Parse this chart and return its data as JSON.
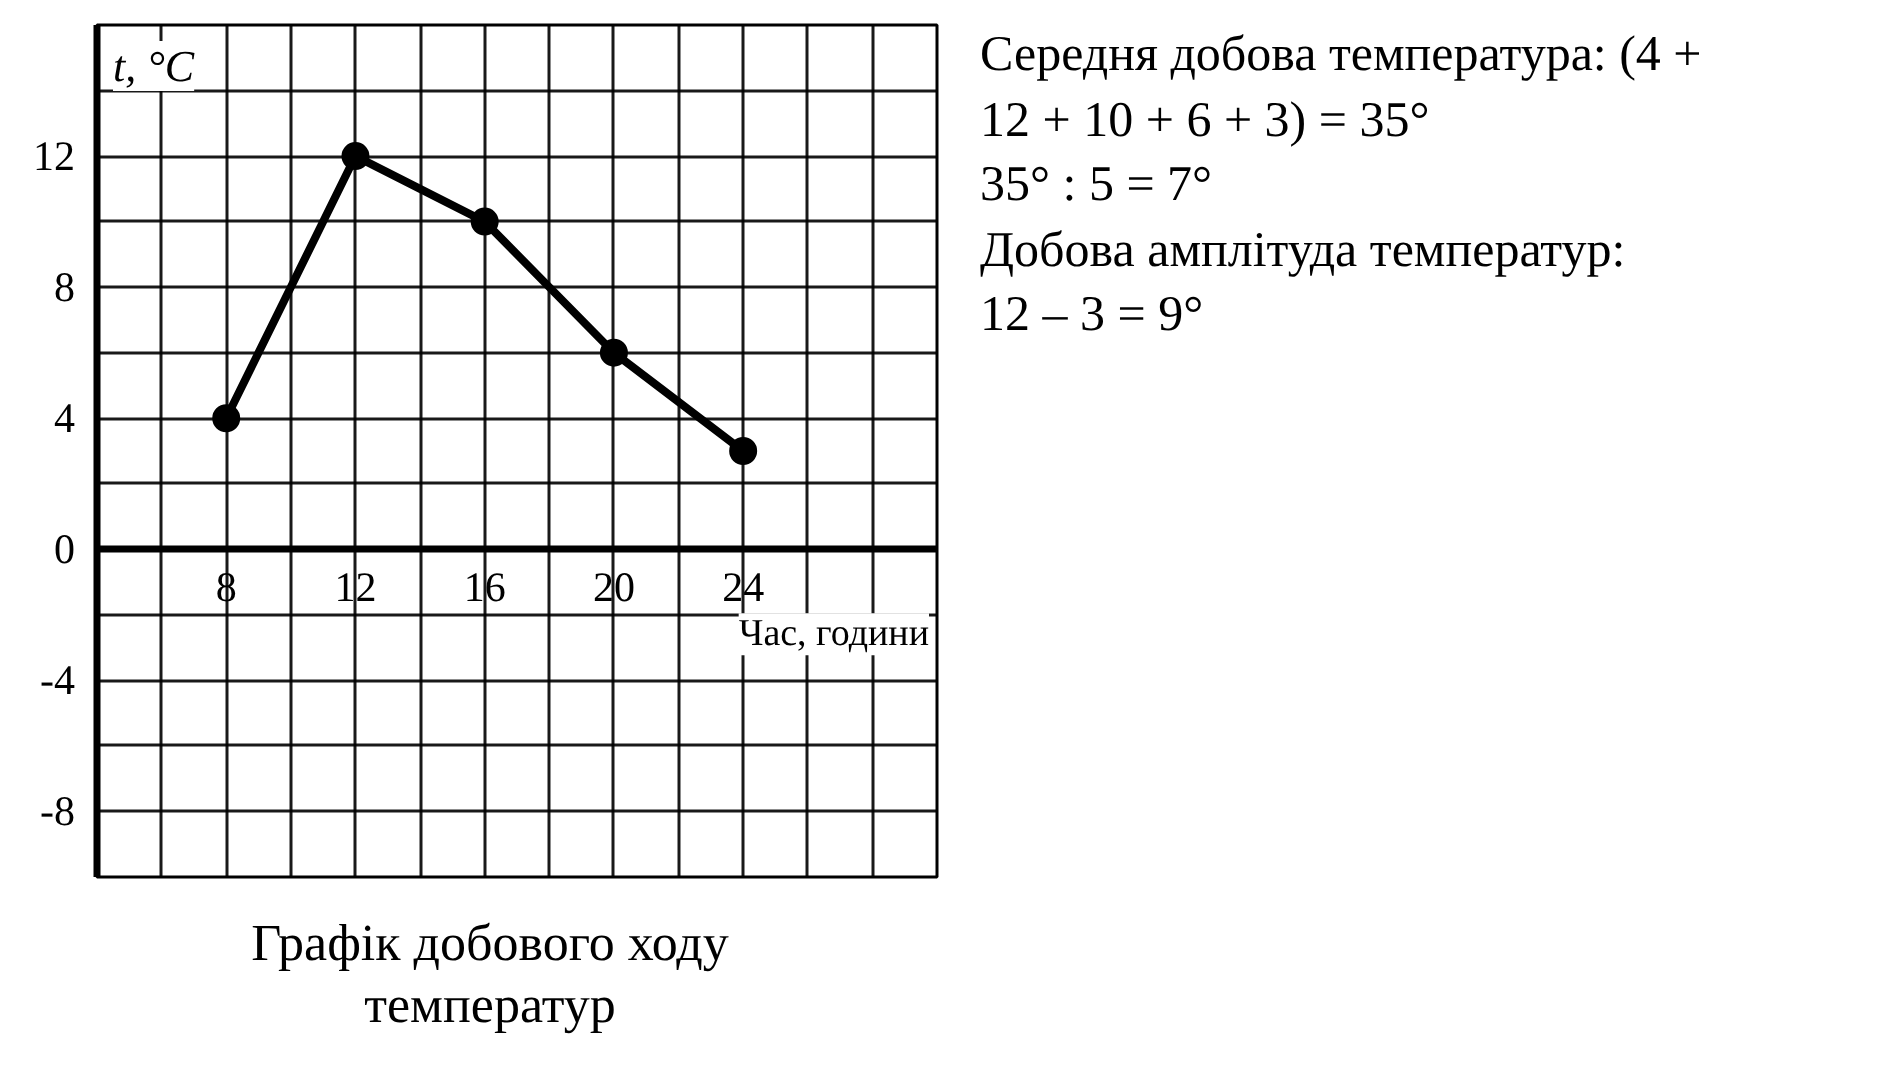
{
  "chart_data": {
    "type": "line",
    "title": "Графік добового ходу температур",
    "xlabel": "Час, години",
    "ylabel": "t, °C",
    "x": [
      8,
      12,
      16,
      20,
      24
    ],
    "series": [
      {
        "color": "#000000",
        "values": [
          4,
          12,
          10,
          6,
          3
        ]
      }
    ],
    "xlim": [
      4,
      30
    ],
    "ylim": [
      -10,
      16
    ],
    "xticks": [
      {
        "value": 4,
        "label": null
      },
      {
        "value": 6,
        "label": null
      },
      8,
      {
        "value": 10,
        "label": null
      },
      12,
      {
        "value": 14,
        "label": null
      },
      16,
      {
        "value": 18,
        "label": null
      },
      20,
      {
        "value": 22,
        "label": null
      },
      24,
      {
        "value": 26,
        "label": null
      },
      {
        "value": 28,
        "label": null
      },
      {
        "value": 30,
        "label": null
      }
    ],
    "yticks": [
      {
        "value": -10,
        "label": null
      },
      -8,
      {
        "value": -6,
        "label": null
      },
      -4,
      {
        "value": -2,
        "label": null
      },
      0,
      {
        "value": 2,
        "label": null
      },
      4,
      {
        "value": 6,
        "label": null
      },
      8,
      {
        "value": 10,
        "label": null
      },
      12,
      {
        "value": 14,
        "label": null
      },
      {
        "value": 16,
        "label": null
      }
    ],
    "grid": true,
    "marker": "circle",
    "line_style": "solid",
    "annotations": [
      "Середня добова температура: (4 + 12 + 10 + 6 + 3) = 35°",
      "35° : 5 = 7°",
      "Добова амплітуда температур:",
      "12 – 3 = 9°"
    ]
  }
}
